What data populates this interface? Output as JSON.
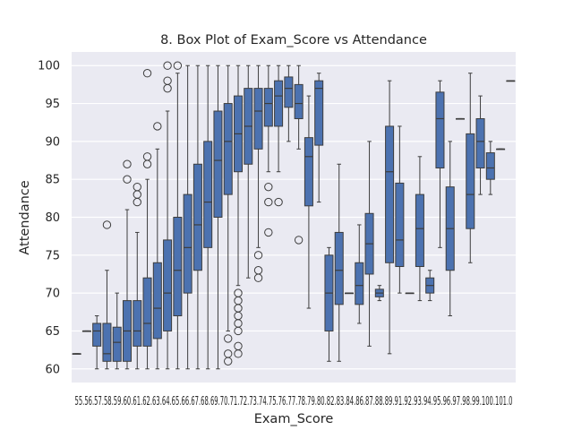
{
  "chart_data": {
    "type": "box",
    "title": "8. Box Plot of Exam_Score vs Attendance",
    "xlabel": "Exam_Score",
    "ylabel": "Attendance",
    "ylim": [
      58.2,
      101.8
    ],
    "yticks": [
      60,
      65,
      70,
      75,
      80,
      85,
      90,
      95,
      100
    ],
    "grid": true,
    "colors": {
      "background": "#eaeaf2",
      "grid": "#ffffff",
      "box_fill": "#4c72b0",
      "line": "#3d3d3d",
      "text": "#262626"
    },
    "categories": [
      "55",
      "56",
      "57",
      "58",
      "59",
      "60",
      "61",
      "62",
      "63",
      "64",
      "65",
      "66",
      "67",
      "68",
      "69",
      "70",
      "71",
      "72",
      "73",
      "74",
      "75",
      "76",
      "77",
      "78",
      "79",
      "80",
      "82",
      "83",
      "84",
      "86",
      "87",
      "88",
      "89",
      "91",
      "92",
      "93",
      "94",
      "95",
      "96",
      "97",
      "98",
      "99",
      "100",
      "101"
    ],
    "x_tick_text": "55.56.57.58.59.60.61.62.63.64.65.66.67.68.69.70.71.72.73.74.75.76.77.78.79.80.82.83.84.86.87.88.89.91.92.93.94.95.96.97.98.99.100.101.0",
    "boxes": [
      {
        "label": "55",
        "min": 62,
        "q1": 62,
        "median": 62,
        "q3": 62,
        "max": 62,
        "outliers": []
      },
      {
        "label": "56",
        "min": 65,
        "q1": 65,
        "median": 65,
        "q3": 65,
        "max": 65,
        "outliers": []
      },
      {
        "label": "57",
        "min": 60,
        "q1": 63,
        "median": 65,
        "q3": 66,
        "max": 67,
        "outliers": []
      },
      {
        "label": "58",
        "min": 60,
        "q1": 61,
        "median": 62,
        "q3": 66,
        "max": 73,
        "outliers": [
          79
        ]
      },
      {
        "label": "59",
        "min": 60,
        "q1": 61,
        "median": 63.5,
        "q3": 65.5,
        "max": 70,
        "outliers": []
      },
      {
        "label": "60",
        "min": 60,
        "q1": 61,
        "median": 65,
        "q3": 69,
        "max": 81,
        "outliers": [
          85,
          87
        ]
      },
      {
        "label": "61",
        "min": 60,
        "q1": 63,
        "median": 65,
        "q3": 69,
        "max": 78,
        "outliers": [
          82,
          83,
          84
        ]
      },
      {
        "label": "62",
        "min": 60,
        "q1": 63,
        "median": 66,
        "q3": 72,
        "max": 85,
        "outliers": [
          87,
          88,
          99
        ]
      },
      {
        "label": "63",
        "min": 60,
        "q1": 64,
        "median": 68,
        "q3": 74,
        "max": 89,
        "outliers": [
          92
        ]
      },
      {
        "label": "64",
        "min": 60,
        "q1": 65,
        "median": 70,
        "q3": 77,
        "max": 94,
        "outliers": [
          97,
          98,
          100
        ]
      },
      {
        "label": "65",
        "min": 60,
        "q1": 67,
        "median": 73,
        "q3": 80,
        "max": 99,
        "outliers": [
          100
        ]
      },
      {
        "label": "66",
        "min": 60,
        "q1": 70,
        "median": 76,
        "q3": 83,
        "max": 100,
        "outliers": []
      },
      {
        "label": "67",
        "min": 60,
        "q1": 73,
        "median": 79,
        "q3": 87,
        "max": 100,
        "outliers": []
      },
      {
        "label": "68",
        "min": 60,
        "q1": 76,
        "median": 82,
        "q3": 90,
        "max": 100,
        "outliers": []
      },
      {
        "label": "69",
        "min": 60,
        "q1": 80,
        "median": 87.5,
        "q3": 94,
        "max": 100,
        "outliers": []
      },
      {
        "label": "70",
        "min": 65,
        "q1": 83,
        "median": 90,
        "q3": 95,
        "max": 100,
        "outliers": [
          61,
          62,
          64
        ]
      },
      {
        "label": "71",
        "min": 71,
        "q1": 86,
        "median": 91,
        "q3": 96,
        "max": 100,
        "outliers": [
          62,
          63,
          65,
          66,
          67,
          68,
          69,
          70
        ]
      },
      {
        "label": "72",
        "min": 72,
        "q1": 87,
        "median": 92,
        "q3": 97,
        "max": 100,
        "outliers": []
      },
      {
        "label": "73",
        "min": 76,
        "q1": 89,
        "median": 94,
        "q3": 97,
        "max": 100,
        "outliers": [
          72,
          73,
          75
        ]
      },
      {
        "label": "74",
        "min": 86,
        "q1": 92,
        "median": 95,
        "q3": 97,
        "max": 100,
        "outliers": [
          78,
          82,
          84
        ]
      },
      {
        "label": "75",
        "min": 86,
        "q1": 92,
        "median": 96,
        "q3": 98,
        "max": 100,
        "outliers": [
          82
        ]
      },
      {
        "label": "76",
        "min": 90,
        "q1": 94.5,
        "median": 97,
        "q3": 98.5,
        "max": 100,
        "outliers": []
      },
      {
        "label": "77",
        "min": 89,
        "q1": 93,
        "median": 95,
        "q3": 97.5,
        "max": 100,
        "outliers": [
          77
        ]
      },
      {
        "label": "78",
        "min": 68,
        "q1": 81.5,
        "median": 88,
        "q3": 90.5,
        "max": 96,
        "outliers": []
      },
      {
        "label": "79",
        "min": 82,
        "q1": 89.5,
        "median": 97,
        "q3": 98,
        "max": 99,
        "outliers": []
      },
      {
        "label": "80",
        "min": 61,
        "q1": 65,
        "median": 70,
        "q3": 75,
        "max": 76,
        "outliers": []
      },
      {
        "label": "82",
        "min": 61,
        "q1": 68.5,
        "median": 73,
        "q3": 78,
        "max": 87,
        "outliers": []
      },
      {
        "label": "83",
        "min": 70,
        "q1": 70,
        "median": 70,
        "q3": 70,
        "max": 70,
        "outliers": []
      },
      {
        "label": "84",
        "min": 66,
        "q1": 68.5,
        "median": 71,
        "q3": 74,
        "max": 79,
        "outliers": []
      },
      {
        "label": "86",
        "min": 63,
        "q1": 72.5,
        "median": 76.5,
        "q3": 80.5,
        "max": 90,
        "outliers": []
      },
      {
        "label": "87",
        "min": 69,
        "q1": 69.5,
        "median": 70,
        "q3": 70.5,
        "max": 71,
        "outliers": []
      },
      {
        "label": "88",
        "min": 62,
        "q1": 74,
        "median": 86,
        "q3": 92,
        "max": 98,
        "outliers": []
      },
      {
        "label": "89",
        "min": 70,
        "q1": 73.5,
        "median": 77,
        "q3": 84.5,
        "max": 92,
        "outliers": []
      },
      {
        "label": "91",
        "min": 70,
        "q1": 70,
        "median": 70,
        "q3": 70,
        "max": 70,
        "outliers": []
      },
      {
        "label": "92",
        "min": 69,
        "q1": 73.5,
        "median": 78.5,
        "q3": 83,
        "max": 88,
        "outliers": []
      },
      {
        "label": "93",
        "min": 69,
        "q1": 70,
        "median": 71,
        "q3": 72,
        "max": 73,
        "outliers": []
      },
      {
        "label": "94",
        "min": 76,
        "q1": 86.5,
        "median": 93,
        "q3": 96.5,
        "max": 98,
        "outliers": []
      },
      {
        "label": "95",
        "min": 67,
        "q1": 73,
        "median": 78.5,
        "q3": 84,
        "max": 90,
        "outliers": []
      },
      {
        "label": "96",
        "min": 93,
        "q1": 93,
        "median": 93,
        "q3": 93,
        "max": 93,
        "outliers": []
      },
      {
        "label": "97",
        "min": 74,
        "q1": 78.5,
        "median": 83,
        "q3": 91,
        "max": 99,
        "outliers": []
      },
      {
        "label": "98",
        "min": 83,
        "q1": 86.5,
        "median": 90,
        "q3": 93,
        "max": 96,
        "outliers": []
      },
      {
        "label": "99",
        "min": 83,
        "q1": 85,
        "median": 86.5,
        "q3": 88.5,
        "max": 90,
        "outliers": []
      },
      {
        "label": "100",
        "min": 89,
        "q1": 89,
        "median": 89,
        "q3": 89,
        "max": 89,
        "outliers": []
      },
      {
        "label": "101",
        "min": 98,
        "q1": 98,
        "median": 98,
        "q3": 98,
        "max": 98,
        "outliers": []
      }
    ]
  }
}
